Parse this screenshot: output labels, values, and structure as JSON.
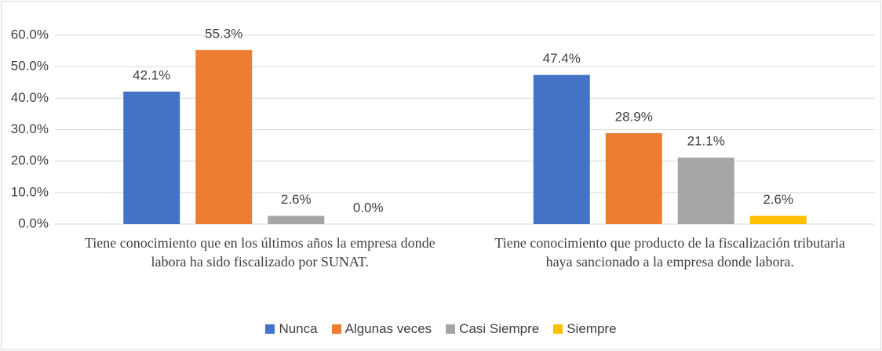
{
  "chart_data": {
    "type": "bar",
    "categories": [
      "Tiene conocimiento que en los últimos años la empresa donde labora ha sido fiscalizado por SUNAT.",
      "Tiene conocimiento que producto de la fiscalización tributaria haya sancionado a la empresa donde labora."
    ],
    "series": [
      {
        "name": "Nunca",
        "color": "#4472c4",
        "values": [
          42.1,
          47.4
        ],
        "value_labels": [
          "42.1%",
          "47.4%"
        ]
      },
      {
        "name": "Algunas veces",
        "color": "#ed7d31",
        "values": [
          55.3,
          28.9
        ],
        "value_labels": [
          "55.3%",
          "28.9%"
        ]
      },
      {
        "name": "Casi Siempre",
        "color": "#a5a5a5",
        "values": [
          2.6,
          21.1
        ],
        "value_labels": [
          "2.6%",
          "21.1%"
        ]
      },
      {
        "name": "Siempre",
        "color": "#ffc000",
        "values": [
          0.0,
          2.6
        ],
        "value_labels": [
          "0.0%",
          "2.6%"
        ]
      }
    ],
    "ylim": [
      0,
      60
    ],
    "yticks": [
      {
        "value": 0,
        "label": "0.0%"
      },
      {
        "value": 10,
        "label": "10.0%"
      },
      {
        "value": 20,
        "label": "20.0%"
      },
      {
        "value": 30,
        "label": "30.0%"
      },
      {
        "value": 40,
        "label": "40.0%"
      },
      {
        "value": 50,
        "label": "50.0%"
      },
      {
        "value": 60,
        "label": "60.0%"
      }
    ],
    "grid": true,
    "legend": "bottom"
  }
}
